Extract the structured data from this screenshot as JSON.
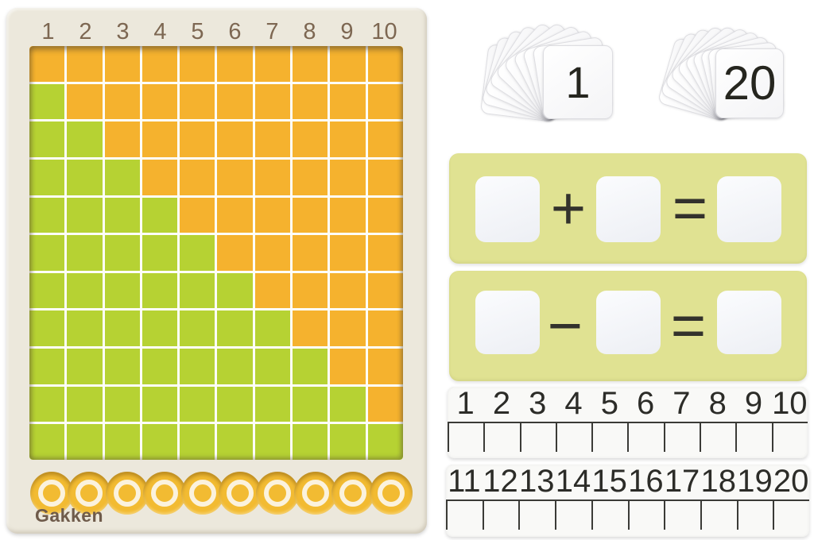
{
  "board": {
    "brand_label": "Gakken",
    "column_numbers": [
      "1",
      "2",
      "3",
      "4",
      "5",
      "6",
      "7",
      "8",
      "9",
      "10"
    ],
    "grid": {
      "columns": 10,
      "rows": 11,
      "green_cells_per_row": [
        0,
        1,
        2,
        3,
        4,
        5,
        6,
        7,
        8,
        9,
        10
      ]
    },
    "bead_count": 10,
    "colors": {
      "frame_cream": "#ece8dc",
      "tile_orange": "#f5b22e",
      "tile_green": "#b6d233",
      "grid_line_white": "#fdfdfa",
      "bead_yellow": "#f2bb32",
      "bead_ring_cream": "#fbf2dd",
      "number_brown": "#7d6752",
      "logo_brown": "#6f5b4b"
    }
  },
  "card_fans": [
    {
      "front_label": "1",
      "back_card_count": 9
    },
    {
      "front_label": "20",
      "back_card_count": 9
    }
  ],
  "equation_strips": [
    {
      "operator": "+",
      "equals_sign": "=",
      "blank_slots": 3,
      "strip_color": "#e0e292"
    },
    {
      "operator": "−",
      "equals_sign": "=",
      "blank_slots": 3,
      "strip_color": "#e0e292"
    }
  ],
  "number_strips": [
    {
      "numbers": [
        "1",
        "2",
        "3",
        "4",
        "5",
        "6",
        "7",
        "8",
        "9",
        "10"
      ],
      "cell_count": 10
    },
    {
      "numbers": [
        "11",
        "12",
        "13",
        "14",
        "15",
        "16",
        "17",
        "18",
        "19",
        "20"
      ],
      "cell_count": 10
    }
  ],
  "symbol_color": "#33322c",
  "strip_line_color": "#3b3b37"
}
